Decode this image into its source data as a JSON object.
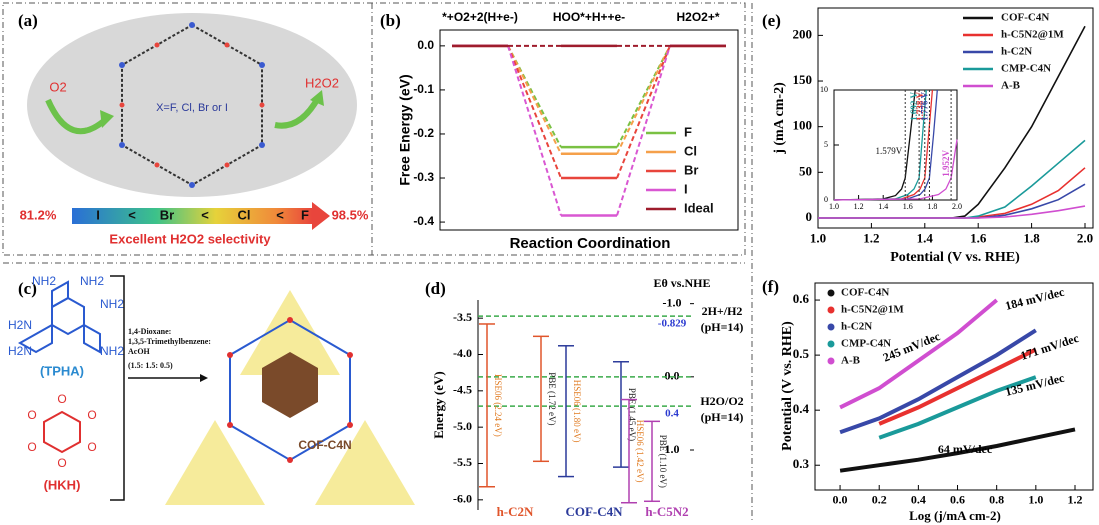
{
  "panels": {
    "a": {
      "label": "(a)",
      "reactant": "O2",
      "product": "H2O2",
      "substituents": "X=F, Cl, Br or I",
      "scale_min": "81.2%",
      "scale_max": "98.5%",
      "order": [
        "I",
        "<",
        "Br",
        "<",
        "Cl",
        "<",
        "F"
      ],
      "caption": "Excellent H2O2 selectivity"
    },
    "c": {
      "label": "(c)",
      "tpha_groups": [
        "NH2",
        "NH2",
        "NH2",
        "H2N",
        "H2N",
        "NH2"
      ],
      "tpha": "(TPHA)",
      "hkh_groups": [
        "O",
        "O",
        "O",
        "O",
        "O",
        "O"
      ],
      "hkh": "(HKH)",
      "conditions": [
        "1,4-Dioxane:",
        "1,3,5-Trimethylbenzene:",
        "AcOH",
        "(1.5: 1.5: 0.5)"
      ],
      "product": "COF-C4N"
    }
  },
  "chart_data": [
    {
      "type": "step",
      "panel_label": "(b)",
      "categories": [
        "*+O2+2(H+e-)",
        "HOO*+H++e-",
        "H2O2+*"
      ],
      "y_label": "Free Energy (eV)",
      "x_label": "Reaction Coordination",
      "ylim": [
        -0.418,
        0.036
      ],
      "yticks": [
        {
          "value": 0,
          "label": "0.0"
        },
        -0.1,
        -0.2,
        -0.3,
        -0.4
      ],
      "legend": "lower right",
      "series": [
        {
          "name": "F",
          "color": "#7ac143",
          "values": [
            0,
            -0.23,
            0
          ]
        },
        {
          "name": "Cl",
          "color": "#f5a04a",
          "values": [
            0,
            -0.245,
            0
          ]
        },
        {
          "name": "Br",
          "color": "#e8453c",
          "values": [
            0,
            -0.3,
            0
          ]
        },
        {
          "name": "I",
          "color": "#d957d2",
          "values": [
            0,
            -0.385,
            0
          ]
        },
        {
          "name": "Ideal",
          "color": "#9e1c2c",
          "values": [
            0,
            0,
            0
          ]
        }
      ]
    },
    {
      "type": "line",
      "panel_label": "(e)",
      "x_label": "Potential (V vs. RHE)",
      "y_label": "j (mA cm-2)",
      "xlim": [
        1.0,
        2.03
      ],
      "ylim": [
        -11,
        230
      ],
      "xticks": [
        {
          "value": 1,
          "label": "1.0"
        },
        1.2,
        1.4,
        1.6,
        1.8,
        {
          "value": 2,
          "label": "2.0"
        }
      ],
      "yticks": [
        0,
        50,
        100,
        150,
        200
      ],
      "legend": "upper right",
      "x": [
        1.0,
        1.2,
        1.4,
        1.5,
        1.55,
        1.6,
        1.7,
        1.8,
        1.9,
        2.0
      ],
      "series": [
        {
          "name": "COF-C4N",
          "color": "#111111",
          "values": [
            0,
            0,
            0,
            0,
            2,
            15,
            55,
            100,
            155,
            210
          ]
        },
        {
          "name": "h-C5N2@1M",
          "color": "#e8312f",
          "values": [
            0,
            0,
            0,
            0,
            0,
            1,
            5,
            15,
            30,
            55
          ]
        },
        {
          "name": "h-C2N",
          "color": "#3848a8",
          "values": [
            0,
            0,
            0,
            0,
            0,
            0,
            3,
            10,
            20,
            37
          ]
        },
        {
          "name": "CMP-C4N",
          "color": "#1a9a9a",
          "values": [
            0,
            0,
            0,
            0,
            0,
            2,
            12,
            35,
            60,
            85
          ]
        },
        {
          "name": "A-B",
          "color": "#d04ed0",
          "values": [
            0,
            0,
            0,
            0,
            0,
            0,
            1,
            4,
            8,
            13
          ]
        }
      ]
    },
    {
      "type": "line",
      "xlim": [
        1.0,
        2.0
      ],
      "ylim": [
        0,
        10
      ],
      "xticks": [
        {
          "value": 1,
          "label": "1.0"
        },
        1.2,
        1.4,
        1.6,
        1.8,
        {
          "value": 2,
          "label": "2.0"
        }
      ],
      "yticks": [
        0,
        5,
        10
      ],
      "series": [
        {
          "color": "#111111",
          "x": [
            1.0,
            1.4,
            1.5,
            1.55,
            1.579,
            1.62,
            1.66
          ],
          "values": [
            0,
            0.1,
            0.4,
            1,
            2,
            6,
            10
          ]
        },
        {
          "color": "#1a9a9a",
          "x": [
            1.0,
            1.5,
            1.6,
            1.65,
            1.692,
            1.72,
            1.75
          ],
          "values": [
            0,
            0.1,
            0.5,
            1,
            2,
            6,
            10
          ]
        },
        {
          "color": "#e8312f",
          "x": [
            1.0,
            1.55,
            1.65,
            1.7,
            1.738,
            1.77,
            1.8
          ],
          "values": [
            0,
            0.1,
            0.5,
            1,
            2,
            6,
            10
          ]
        },
        {
          "color": "#3848a8",
          "x": [
            1.0,
            1.6,
            1.7,
            1.74,
            1.776,
            1.81,
            1.84
          ],
          "values": [
            0,
            0.1,
            0.5,
            1,
            2,
            6,
            10
          ]
        },
        {
          "color": "#d04ed0",
          "x": [
            1.0,
            1.7,
            1.85,
            1.91,
            1.952,
            1.98,
            2.0
          ],
          "values": [
            0,
            0.1,
            0.5,
            1,
            2,
            4,
            5.5
          ]
        }
      ],
      "annotations": {
        "values": [
          1.579,
          1.692,
          1.738,
          1.776,
          1.952
        ],
        "value_labels": [
          "1.579V",
          "1.692 V",
          "1.738 V",
          "1.776 V",
          "1.952V"
        ],
        "colors": [
          "#111111",
          "#1a9a9a",
          "#e8312f",
          "#3848a8",
          "#d04ed0"
        ]
      }
    },
    {
      "type": "band",
      "panel_label": "(d)",
      "y_label": "Energy (eV)",
      "y2_label": "Eθ vs.NHE",
      "ylim": [
        -6.14,
        -3.25
      ],
      "yticks": [
        -3.5,
        {
          "value": -4,
          "label": "-4.0"
        },
        -4.5,
        {
          "value": -5,
          "label": "-5.0"
        },
        -5.5,
        {
          "value": -6,
          "label": "-6.0"
        }
      ],
      "y2lim": [
        -1.05,
        1.82
      ],
      "y2_inverted": true,
      "y2ticks": [
        {
          "value": -1,
          "label": "-1.0"
        },
        {
          "value": 0,
          "label": "0.0"
        },
        {
          "value": 1,
          "label": "1.0"
        }
      ],
      "levels": [
        {
          "value": -0.829,
          "name": "2H+/H2",
          "note": "(pH=14)"
        },
        {
          "value": 0
        },
        {
          "value": 0.4,
          "name": "H2O/O2",
          "note": "(pH=14)"
        }
      ],
      "level_color": "#3aaa4a",
      "materials": [
        {
          "name": "h-C2N",
          "color": "#e0552b",
          "gaps": [
            {
              "label": "HSE06 (2.24 eV)",
              "cbm": -3.58,
              "vbm": -5.82
            },
            {
              "label": "PBE (1.72 eV)",
              "cbm": -3.75,
              "vbm": -5.47
            }
          ]
        },
        {
          "name": "COF-C4N",
          "color": "#2b3a9a",
          "gaps": [
            {
              "label": "HSE06 (1.80 eV)",
              "cbm": -3.88,
              "vbm": -5.68
            },
            {
              "label": "PBE (1.45 eV)",
              "cbm": -4.1,
              "vbm": -5.55
            }
          ]
        },
        {
          "name": "h-C5N2",
          "color": "#b040b0",
          "gaps": [
            {
              "label": "HSE06 (1.42 eV)",
              "cbm": -4.62,
              "vbm": -6.04
            },
            {
              "label": "PBE (1.10 eV)",
              "cbm": -4.92,
              "vbm": -6.02
            }
          ]
        }
      ]
    },
    {
      "type": "line",
      "panel_label": "(f)",
      "x_label": "Log (j/mA cm-2)",
      "y_label": "Potential (V vs. RHE)",
      "xlim": [
        -0.128,
        1.292
      ],
      "ylim": [
        0.255,
        0.631
      ],
      "xticks": [
        {
          "value": 0,
          "label": "0.0"
        },
        0.2,
        0.4,
        0.6,
        0.8,
        {
          "value": 1,
          "label": "1.0"
        },
        1.2
      ],
      "yticks": [
        0.3,
        0.4,
        0.5,
        0.6
      ],
      "legend": "upper left",
      "series": [
        {
          "name": "COF-C4N",
          "color": "#111111",
          "x": [
            0,
            0.2,
            0.4,
            0.6,
            0.8,
            1.0,
            1.2
          ],
          "values": [
            0.29,
            0.3,
            0.31,
            0.322,
            0.335,
            0.35,
            0.365
          ]
        },
        {
          "name": "h-C5N2@1M",
          "color": "#e8312f",
          "x": [
            0.2,
            0.4,
            0.6,
            0.8,
            1.0
          ],
          "values": [
            0.375,
            0.405,
            0.44,
            0.475,
            0.51
          ]
        },
        {
          "name": "h-C2N",
          "color": "#3848a8",
          "x": [
            0,
            0.2,
            0.4,
            0.6,
            0.8,
            1.0
          ],
          "values": [
            0.36,
            0.385,
            0.42,
            0.46,
            0.5,
            0.545
          ]
        },
        {
          "name": "CMP-C4N",
          "color": "#1a9a9a",
          "x": [
            0.2,
            0.4,
            0.6,
            0.8,
            1.0
          ],
          "values": [
            0.35,
            0.375,
            0.405,
            0.435,
            0.46
          ]
        },
        {
          "name": "A-B",
          "color": "#d04ed0",
          "x": [
            0,
            0.2,
            0.4,
            0.6,
            0.8
          ],
          "values": [
            0.405,
            0.44,
            0.49,
            0.54,
            0.6
          ]
        }
      ],
      "annotations": [
        "245 mV/dec",
        "184 mV/dec",
        "171 mV/dec",
        "135 mV/dec",
        "64 mV/dec"
      ]
    }
  ]
}
